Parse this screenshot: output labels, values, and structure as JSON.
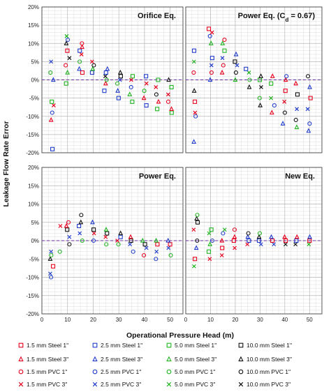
{
  "chart_data": {
    "type": "scatter",
    "ylabel": "Leakage Flow Rate Error",
    "xlabel": "Operational Pressure Head (m)",
    "xlim": [
      0,
      55
    ],
    "ylim": [
      -0.2,
      0.2
    ],
    "yticks": [
      "20%",
      "15%",
      "10%",
      "5%",
      "0%",
      "-5%",
      "-10%",
      "-15%",
      "-20%"
    ],
    "xticks": [
      "0",
      "10",
      "20",
      "30",
      "40",
      "50"
    ],
    "grid": true,
    "legend_position": "bottom",
    "panels": [
      {
        "title": "Orifice Eq.",
        "title_sub": "",
        "title_suffix": "",
        "groups": [
          {
            "x": 4,
            "y": [
              -0.19,
              -0.11,
              -0.09,
              -0.07,
              -0.06,
              0.0,
              0.02,
              0.05
            ]
          },
          {
            "x": 10,
            "y": [
              -0.01,
              0.02,
              0.04,
              0.06,
              0.08,
              0.1,
              0.11,
              0.12
            ]
          },
          {
            "x": 15,
            "y": [
              0.02,
              0.03,
              0.05,
              0.07,
              0.08,
              0.09,
              0.1
            ]
          },
          {
            "x": 20,
            "y": [
              0.02,
              0.03,
              0.04,
              0.05
            ]
          },
          {
            "x": 25,
            "y": [
              -0.03,
              -0.01,
              0.0,
              0.01,
              0.02,
              0.03
            ]
          },
          {
            "x": 30,
            "y": [
              -0.05,
              -0.03,
              -0.01,
              0.0,
              0.01,
              0.02
            ]
          },
          {
            "x": 35,
            "y": [
              -0.06,
              -0.04,
              -0.02,
              0.0,
              0.01
            ]
          },
          {
            "x": 40,
            "y": [
              -0.07,
              -0.05,
              -0.03,
              -0.01,
              0.01
            ]
          },
          {
            "x": 45,
            "y": [
              -0.08,
              -0.06,
              -0.04,
              -0.02,
              0.0
            ]
          },
          {
            "x": 50,
            "y": [
              -0.09,
              -0.08,
              -0.06,
              -0.04,
              -0.02,
              0.0
            ]
          }
        ]
      },
      {
        "title": "Power Eq. (C",
        "title_sub": "d",
        "title_suffix": " = 0.67)",
        "groups": [
          {
            "x": 4,
            "y": [
              -0.17,
              -0.1,
              -0.09,
              -0.06,
              -0.03,
              0.02,
              0.05,
              0.08
            ]
          },
          {
            "x": 10,
            "y": [
              0.0,
              0.02,
              0.04,
              0.06,
              0.1,
              0.12,
              0.13,
              0.14
            ]
          },
          {
            "x": 15,
            "y": [
              0.02,
              0.04,
              0.06,
              0.08,
              0.1,
              0.11
            ]
          },
          {
            "x": 20,
            "y": [
              0.0,
              0.02,
              0.04,
              0.05,
              0.07
            ]
          },
          {
            "x": 25,
            "y": [
              -0.02,
              0.0,
              0.02,
              0.03
            ]
          },
          {
            "x": 30,
            "y": [
              -0.07,
              -0.05,
              -0.02,
              0.0,
              0.01
            ]
          },
          {
            "x": 35,
            "y": [
              -0.09,
              -0.07,
              -0.05,
              -0.01,
              0.01
            ]
          },
          {
            "x": 40,
            "y": [
              -0.12,
              -0.09,
              -0.06,
              -0.03,
              0.0,
              0.01
            ]
          },
          {
            "x": 45,
            "y": [
              -0.13,
              -0.11,
              -0.08,
              -0.04,
              -0.01
            ]
          },
          {
            "x": 50,
            "y": [
              -0.14,
              -0.12,
              -0.08,
              -0.05,
              -0.02,
              0.01
            ]
          }
        ]
      },
      {
        "title": "Power Eq.",
        "title_sub": "",
        "title_suffix": "",
        "groups": [
          {
            "x": 4,
            "y": [
              -0.1,
              -0.09,
              -0.07,
              -0.05,
              -0.04,
              -0.03
            ]
          },
          {
            "x": 7,
            "y": [
              -0.03,
              0.04
            ]
          },
          {
            "x": 10,
            "y": [
              -0.01,
              0.01,
              0.03,
              0.04,
              0.05
            ]
          },
          {
            "x": 15,
            "y": [
              0.0,
              0.02,
              0.04,
              0.05,
              0.07
            ]
          },
          {
            "x": 20,
            "y": [
              0.0,
              0.02,
              0.03,
              0.05
            ]
          },
          {
            "x": 25,
            "y": [
              -0.01,
              0.01,
              0.02,
              0.03
            ]
          },
          {
            "x": 30,
            "y": [
              -0.01,
              0.0,
              0.01,
              0.02
            ]
          },
          {
            "x": 35,
            "y": [
              -0.03,
              -0.01,
              0.0,
              0.01
            ]
          },
          {
            "x": 40,
            "y": [
              -0.04,
              -0.02,
              -0.01,
              0.0
            ]
          },
          {
            "x": 45,
            "y": [
              -0.05,
              -0.03,
              -0.01,
              0.0
            ]
          },
          {
            "x": 50,
            "y": [
              -0.04,
              -0.02,
              -0.01,
              0.0
            ]
          }
        ]
      },
      {
        "title": "New Eq.",
        "title_sub": "",
        "title_suffix": "",
        "groups": [
          {
            "x": 4,
            "y": [
              -0.07,
              -0.05,
              -0.02,
              0.0,
              0.03,
              0.05,
              0.06,
              0.07
            ]
          },
          {
            "x": 10,
            "y": [
              -0.05,
              -0.03,
              -0.01,
              0.0,
              0.02,
              0.03
            ]
          },
          {
            "x": 15,
            "y": [
              -0.04,
              -0.02,
              0.0,
              0.02,
              0.03
            ]
          },
          {
            "x": 20,
            "y": [
              -0.02,
              0.0,
              0.01,
              0.03
            ]
          },
          {
            "x": 25,
            "y": [
              -0.01,
              0.0,
              0.01,
              0.02
            ]
          },
          {
            "x": 30,
            "y": [
              -0.01,
              0.0,
              0.01,
              0.02
            ]
          },
          {
            "x": 35,
            "y": [
              -0.01,
              0.0,
              0.01
            ]
          },
          {
            "x": 40,
            "y": [
              -0.01,
              0.0,
              0.01
            ]
          },
          {
            "x": 45,
            "y": [
              -0.01,
              0.0,
              0.01
            ]
          },
          {
            "x": 50,
            "y": [
              -0.01,
              0.0,
              0.01
            ]
          }
        ]
      }
    ],
    "legend": [
      {
        "label": "1.5 mm Steel 1''",
        "color": "#e8001c",
        "marker": "square"
      },
      {
        "label": "2.5 mm Steel 1''",
        "color": "#1f3ccc",
        "marker": "square"
      },
      {
        "label": "5.0 mm Steel 1''",
        "color": "#1fb31f",
        "marker": "square"
      },
      {
        "label": "10.0 mm Steel 1''",
        "color": "#111111",
        "marker": "square"
      },
      {
        "label": "1.5 mm Steel 3''",
        "color": "#e8001c",
        "marker": "triangle"
      },
      {
        "label": "2.5 mm Steel 3''",
        "color": "#1f3ccc",
        "marker": "triangle"
      },
      {
        "label": "5.0 mm Steel 3''",
        "color": "#1fb31f",
        "marker": "triangle"
      },
      {
        "label": "10.0 mm Steel 3''",
        "color": "#111111",
        "marker": "triangle"
      },
      {
        "label": "1.5 mm PVC 1''",
        "color": "#e8001c",
        "marker": "circle"
      },
      {
        "label": "2.5 mm PVC 1''",
        "color": "#1f3ccc",
        "marker": "circle"
      },
      {
        "label": "5.0 mm PVC 1''",
        "color": "#1fb31f",
        "marker": "circle"
      },
      {
        "label": "10.0 mm PVC 1''",
        "color": "#111111",
        "marker": "circle"
      },
      {
        "label": "1.5 mm PVC 3''",
        "color": "#e8001c",
        "marker": "x"
      },
      {
        "label": "2.5 mm PVC 3''",
        "color": "#1f3ccc",
        "marker": "x"
      },
      {
        "label": "5.0 mm PVC 3''",
        "color": "#1fb31f",
        "marker": "x"
      },
      {
        "label": "10.0 mm PVC 3''",
        "color": "#111111",
        "marker": "x"
      }
    ],
    "zero_line_color": "#6b2fa0"
  }
}
